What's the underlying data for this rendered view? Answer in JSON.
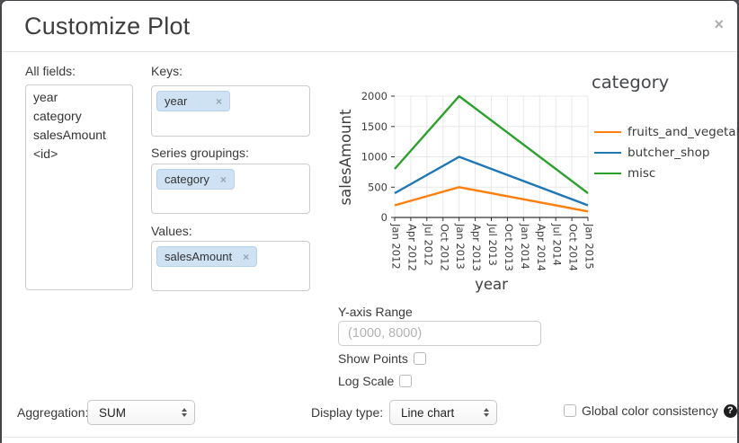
{
  "dialog": {
    "title": "Customize Plot"
  },
  "icons": {
    "close": "×",
    "tag_remove": "×",
    "help": "?"
  },
  "fields_panel": {
    "label": "All fields:",
    "items": [
      "year",
      "category",
      "salesAmount",
      "<id>"
    ]
  },
  "mappings": {
    "keys": {
      "label": "Keys:",
      "tags": [
        "year"
      ]
    },
    "series_groupings": {
      "label": "Series groupings:",
      "tags": [
        "category"
      ]
    },
    "values": {
      "label": "Values:",
      "tags": [
        "salesAmount"
      ]
    }
  },
  "chart_data": {
    "type": "line",
    "title": "",
    "xlabel": "year",
    "ylabel": "salesAmount",
    "legend_title": "category",
    "legend_position": "right",
    "grid": true,
    "categories": [
      "Jan 2012",
      "Apr 2012",
      "Jul 2012",
      "Oct 2012",
      "Jan 2013",
      "Apr 2013",
      "Jul 2013",
      "Oct 2013",
      "Jan 2014",
      "Apr 2014",
      "Jul 2014",
      "Oct 2014",
      "Jan 2015"
    ],
    "y_ticks": [
      0,
      500,
      1000,
      1500,
      2000
    ],
    "ylim": [
      0,
      2000
    ],
    "series": [
      {
        "name": "fruits_and_vegetable",
        "color": "#ff7f0e",
        "points": [
          [
            "Jan 2012",
            200
          ],
          [
            "Jan 2013",
            500
          ],
          [
            "Jan 2015",
            100
          ]
        ]
      },
      {
        "name": "butcher_shop",
        "color": "#1f77b4",
        "points": [
          [
            "Jan 2012",
            400
          ],
          [
            "Jan 2013",
            1000
          ],
          [
            "Jan 2015",
            200
          ]
        ]
      },
      {
        "name": "misc",
        "color": "#2ca02c",
        "points": [
          [
            "Jan 2012",
            800
          ],
          [
            "Jan 2013",
            2000
          ],
          [
            "Jan 2015",
            400
          ]
        ]
      }
    ]
  },
  "controls": {
    "y_axis_range": {
      "label": "Y-axis Range",
      "placeholder": "(1000, 8000)",
      "value": ""
    },
    "show_points": {
      "label": "Show Points",
      "checked": false
    },
    "log_scale": {
      "label": "Log Scale",
      "checked": false
    },
    "aggregation": {
      "label": "Aggregation:",
      "value": "SUM"
    },
    "display_type": {
      "label": "Display type:",
      "value": "Line chart"
    },
    "global_color": {
      "label": "Global color consistency",
      "checked": false
    }
  }
}
